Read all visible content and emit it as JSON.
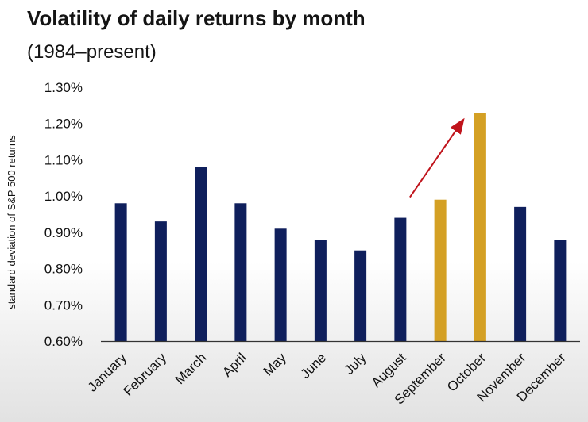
{
  "chart_data": {
    "type": "bar",
    "title": "Volatility of daily returns by month",
    "subtitle": "(1984–present)",
    "ylabel": "standard deviation of S&P 500 returns",
    "xlabel": "",
    "ylim": [
      0.6,
      1.3
    ],
    "yticks": [
      0.6,
      0.7,
      0.8,
      0.9,
      1.0,
      1.1,
      1.2,
      1.3
    ],
    "ytick_labels": [
      "0.60%",
      "0.70%",
      "0.80%",
      "0.90%",
      "1.00%",
      "1.10%",
      "1.20%",
      "1.30%"
    ],
    "categories": [
      "January",
      "February",
      "March",
      "April",
      "May",
      "June",
      "July",
      "August",
      "September",
      "October",
      "November",
      "December"
    ],
    "values": [
      0.98,
      0.93,
      1.08,
      0.98,
      0.91,
      0.88,
      0.85,
      0.94,
      0.99,
      1.23,
      0.97,
      0.88
    ],
    "highlighted": [
      "September",
      "October"
    ],
    "annotation": "arrow pointing up-right from August toward October",
    "grid": false,
    "colors": {
      "bar": "#0f1f5c",
      "highlight": "#d4a024",
      "arrow": "#c0141c",
      "axis": "#333333"
    }
  }
}
